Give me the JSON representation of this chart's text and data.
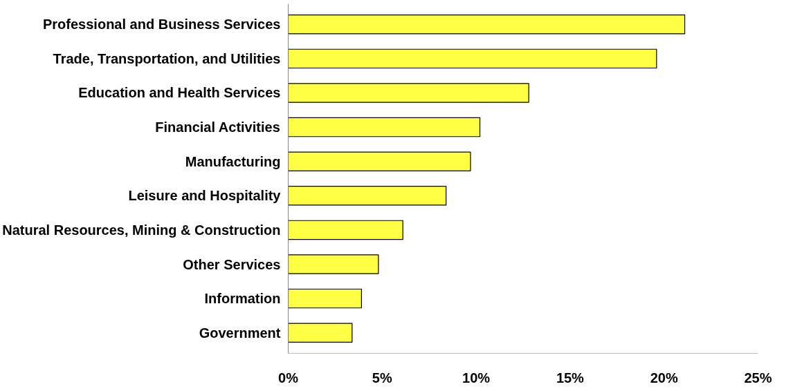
{
  "chart_data": {
    "type": "bar",
    "orientation": "horizontal",
    "categories": [
      "Professional and Business Services",
      "Trade, Transportation, and Utilities",
      "Education and Health Services",
      "Financial Activities",
      "Manufacturing",
      "Leisure and Hospitality",
      "Natural Resources, Mining & Construction",
      "Other Services",
      "Information",
      "Government"
    ],
    "values": [
      21.1,
      19.6,
      12.8,
      10.2,
      9.7,
      8.4,
      6.1,
      4.8,
      3.9,
      3.4
    ],
    "color": "#ffff44",
    "xlim": [
      0,
      25
    ],
    "xticks": [
      {
        "value": 0,
        "label": "0%"
      },
      {
        "value": 5,
        "label": "5%"
      },
      {
        "value": 10,
        "label": "10%"
      },
      {
        "value": 15,
        "label": "15%"
      },
      {
        "value": 20,
        "label": "20%"
      },
      {
        "value": 25,
        "label": "25%"
      }
    ],
    "grid": false
  }
}
